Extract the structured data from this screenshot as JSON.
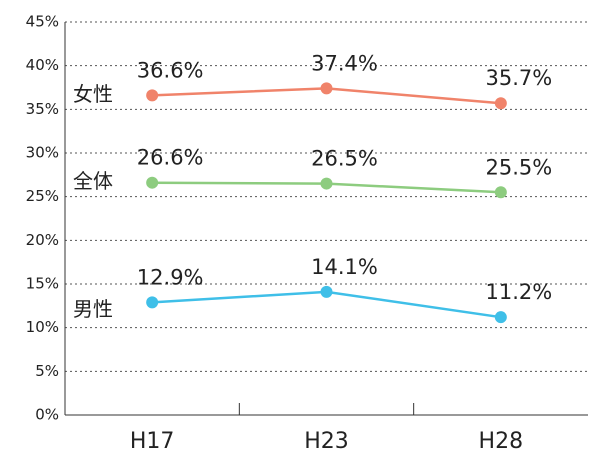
{
  "chart_data": {
    "type": "line",
    "categories": [
      "H17",
      "H23",
      "H28"
    ],
    "series": [
      {
        "name": "女性",
        "color": "#f0836a",
        "values": [
          36.6,
          37.4,
          35.7
        ],
        "value_labels": [
          "36.6%",
          "37.4%",
          "35.7%"
        ]
      },
      {
        "name": "全体",
        "color": "#8dcc7f",
        "values": [
          26.6,
          26.5,
          25.5
        ],
        "value_labels": [
          "26.6%",
          "26.5%",
          "25.5%"
        ]
      },
      {
        "name": "男性",
        "color": "#3fbfe8",
        "values": [
          12.9,
          14.1,
          11.2
        ],
        "value_labels": [
          "12.9%",
          "14.1%",
          "11.2%"
        ]
      }
    ],
    "ylim": [
      0,
      45
    ],
    "yticks": [
      {
        "value": 0,
        "label": "0%"
      },
      {
        "value": 5,
        "label": "5%"
      },
      {
        "value": 10,
        "label": "10%"
      },
      {
        "value": 15,
        "label": "15%"
      },
      {
        "value": 20,
        "label": "20%"
      },
      {
        "value": 25,
        "label": "25%"
      },
      {
        "value": 30,
        "label": "30%"
      },
      {
        "value": 35,
        "label": "35%"
      },
      {
        "value": 40,
        "label": "40%"
      },
      {
        "value": 45,
        "label": "45%"
      }
    ],
    "grid": true
  }
}
